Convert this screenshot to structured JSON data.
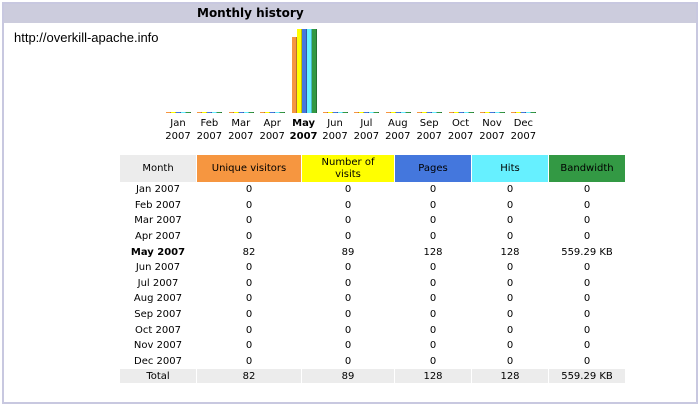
{
  "title": "Monthly history",
  "site_url": "http://overkill-apache.info",
  "colors": {
    "visitors": "#f69640",
    "visits": "#ffff00",
    "pages": "#4477dd",
    "hits": "#66f0ff",
    "bandwidth": "#339944"
  },
  "chart_data": {
    "type": "bar",
    "categories": [
      "Jan 2007",
      "Feb 2007",
      "Mar 2007",
      "Apr 2007",
      "May 2007",
      "Jun 2007",
      "Jul 2007",
      "Aug 2007",
      "Sep 2007",
      "Oct 2007",
      "Nov 2007",
      "Dec 2007"
    ],
    "highlight": "May 2007",
    "series": [
      {
        "name": "Unique visitors",
        "values": [
          0,
          0,
          0,
          0,
          82,
          0,
          0,
          0,
          0,
          0,
          0,
          0
        ]
      },
      {
        "name": "Number of visits",
        "values": [
          0,
          0,
          0,
          0,
          89,
          0,
          0,
          0,
          0,
          0,
          0,
          0
        ]
      },
      {
        "name": "Pages",
        "values": [
          0,
          0,
          0,
          0,
          128,
          0,
          0,
          0,
          0,
          0,
          0,
          0
        ]
      },
      {
        "name": "Hits",
        "values": [
          0,
          0,
          0,
          0,
          128,
          0,
          0,
          0,
          0,
          0,
          0,
          0
        ]
      },
      {
        "name": "Bandwidth",
        "values_kb": [
          0,
          0,
          0,
          0,
          559.29,
          0,
          0,
          0,
          0,
          0,
          0,
          0
        ]
      }
    ]
  },
  "month_labels": [
    {
      "m": "Jan",
      "y": "2007"
    },
    {
      "m": "Feb",
      "y": "2007"
    },
    {
      "m": "Mar",
      "y": "2007"
    },
    {
      "m": "Apr",
      "y": "2007"
    },
    {
      "m": "May",
      "y": "2007"
    },
    {
      "m": "Jun",
      "y": "2007"
    },
    {
      "m": "Jul",
      "y": "2007"
    },
    {
      "m": "Aug",
      "y": "2007"
    },
    {
      "m": "Sep",
      "y": "2007"
    },
    {
      "m": "Oct",
      "y": "2007"
    },
    {
      "m": "Nov",
      "y": "2007"
    },
    {
      "m": "Dec",
      "y": "2007"
    }
  ],
  "table": {
    "headers": [
      "Month",
      "Unique visitors",
      "Number of visits",
      "Pages",
      "Hits",
      "Bandwidth"
    ],
    "rows": [
      [
        "Jan 2007",
        "0",
        "0",
        "0",
        "0",
        "0"
      ],
      [
        "Feb 2007",
        "0",
        "0",
        "0",
        "0",
        "0"
      ],
      [
        "Mar 2007",
        "0",
        "0",
        "0",
        "0",
        "0"
      ],
      [
        "Apr 2007",
        "0",
        "0",
        "0",
        "0",
        "0"
      ],
      [
        "May 2007",
        "82",
        "89",
        "128",
        "128",
        "559.29 KB"
      ],
      [
        "Jun 2007",
        "0",
        "0",
        "0",
        "0",
        "0"
      ],
      [
        "Jul 2007",
        "0",
        "0",
        "0",
        "0",
        "0"
      ],
      [
        "Aug 2007",
        "0",
        "0",
        "0",
        "0",
        "0"
      ],
      [
        "Sep 2007",
        "0",
        "0",
        "0",
        "0",
        "0"
      ],
      [
        "Oct 2007",
        "0",
        "0",
        "0",
        "0",
        "0"
      ],
      [
        "Nov 2007",
        "0",
        "0",
        "0",
        "0",
        "0"
      ],
      [
        "Dec 2007",
        "0",
        "0",
        "0",
        "0",
        "0"
      ]
    ],
    "total": [
      "Total",
      "82",
      "89",
      "128",
      "128",
      "559.29 KB"
    ]
  }
}
